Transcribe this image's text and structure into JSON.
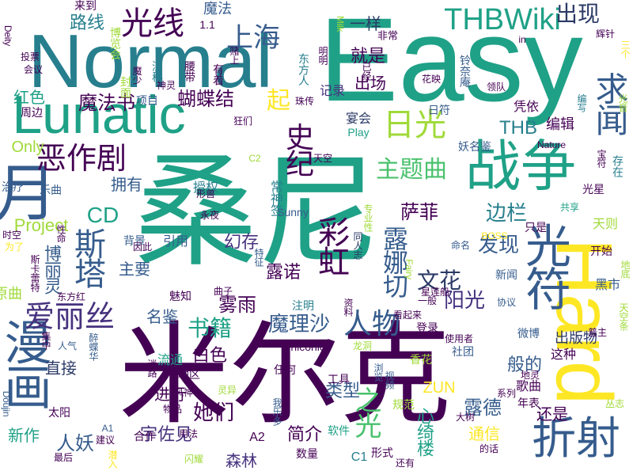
{
  "palette": {
    "d": "#440154",
    "p": "#46327e",
    "b": "#365c8d",
    "t": "#277f8e",
    "g": "#1fa187",
    "l": "#4ac16d",
    "y": "#a0da39",
    "Y": "#fde725",
    "k": "#2b3a66"
  },
  "words": [
    {
      "text": "Normal",
      "color": "t"
    },
    {
      "text": "Easy",
      "color": "g"
    },
    {
      "text": "Hard",
      "color": "Y"
    },
    {
      "text": "桑尼",
      "color": "g"
    },
    {
      "text": "米尔克",
      "color": "d"
    },
    {
      "text": "Lunatic",
      "color": "g"
    },
    {
      "text": "战争",
      "color": "g"
    },
    {
      "text": "月",
      "color": "b"
    },
    {
      "text": "漫画",
      "color": "b"
    },
    {
      "text": "光符",
      "color": "b"
    },
    {
      "text": "光线",
      "color": "d"
    },
    {
      "text": "上海",
      "color": "b"
    },
    {
      "text": "THBWiki",
      "color": "g"
    },
    {
      "text": "出现",
      "color": "k"
    },
    {
      "text": "恶作剧",
      "color": "d"
    },
    {
      "text": "史纪",
      "color": "d"
    },
    {
      "text": "日光",
      "color": "y"
    },
    {
      "text": "求闻",
      "color": "b"
    },
    {
      "text": "斯塔",
      "color": "b"
    },
    {
      "text": "露娜切",
      "color": "b"
    },
    {
      "text": "爱丽丝",
      "color": "p"
    },
    {
      "text": "人物",
      "color": "b"
    },
    {
      "text": "折射",
      "color": "b"
    },
    {
      "text": "主题曲",
      "color": "l"
    },
    {
      "text": "彩虹",
      "color": "d"
    },
    {
      "text": "魔法书",
      "color": "d"
    },
    {
      "text": "蝴蝶结",
      "color": "d"
    },
    {
      "text": "路线",
      "color": "t"
    },
    {
      "text": "Only",
      "color": "y"
    },
    {
      "text": "CD",
      "color": "g"
    },
    {
      "text": "Project",
      "color": "y"
    },
    {
      "text": "博丽灵",
      "color": "b"
    },
    {
      "text": "书籍",
      "color": "g"
    },
    {
      "text": "魔理沙",
      "color": "b"
    },
    {
      "text": "之光",
      "color": "l"
    },
    {
      "text": "阳光",
      "color": "p"
    },
    {
      "text": "文花",
      "color": "k"
    },
    {
      "text": "萨菲",
      "color": "d"
    },
    {
      "text": "边栏",
      "color": "t"
    },
    {
      "text": "发现",
      "color": "b"
    },
    {
      "text": "露德",
      "color": "b"
    },
    {
      "text": "类型",
      "color": "b"
    },
    {
      "text": "她们",
      "color": "d"
    },
    {
      "text": "白色",
      "color": "d"
    },
    {
      "text": "宇佐见",
      "color": "p"
    },
    {
      "text": "人妖",
      "color": "b"
    },
    {
      "text": "新作",
      "color": "g"
    },
    {
      "text": "起",
      "color": "Y"
    },
    {
      "text": "红色",
      "color": "g"
    },
    {
      "text": "就是",
      "color": "d"
    },
    {
      "text": "出场",
      "color": "d"
    },
    {
      "text": "THB",
      "color": "t"
    },
    {
      "text": "雾雨",
      "color": "d"
    },
    {
      "text": "幻存",
      "color": "p"
    },
    {
      "text": "露诺",
      "color": "d"
    },
    {
      "text": "名鉴",
      "color": "b"
    },
    {
      "text": "直接",
      "color": "k"
    },
    {
      "text": "进行",
      "color": "d"
    },
    {
      "text": "通信",
      "color": "Y"
    },
    {
      "text": "般的",
      "color": "b"
    },
    {
      "text": "还是",
      "color": "d"
    },
    {
      "text": "ZUN",
      "color": "Y"
    },
    {
      "text": "心绮楼",
      "color": "g"
    },
    {
      "text": "简介",
      "color": "d"
    },
    {
      "text": "森林",
      "color": "p"
    },
    {
      "text": "主要",
      "color": "b"
    },
    {
      "text": "一样",
      "color": "k"
    },
    {
      "text": "魔法",
      "color": "b"
    },
    {
      "text": "原曲",
      "color": "y"
    },
    {
      "text": "拥有",
      "color": "b"
    },
    {
      "text": "宴会",
      "color": "k"
    },
    {
      "text": "凭依",
      "color": "d"
    },
    {
      "text": "编辑",
      "color": "d"
    },
    {
      "text": "记录",
      "color": "p"
    },
    {
      "text": "日符",
      "color": "b"
    },
    {
      "text": "出版物",
      "color": "k"
    },
    {
      "text": "这种",
      "color": "d"
    },
    {
      "text": "歌曲",
      "color": "d"
    },
    {
      "text": "年表",
      "color": "d"
    },
    {
      "text": "常神签",
      "color": "t"
    },
    {
      "text": "形式",
      "color": "d"
    },
    {
      "text": "C1",
      "color": "t"
    },
    {
      "text": "A2",
      "color": "d"
    },
    {
      "text": "合作",
      "color": "d"
    },
    {
      "text": "数量",
      "color": "d"
    },
    {
      "text": "niconico",
      "color": "d"
    },
    {
      "text": "Sunny",
      "color": "b"
    },
    {
      "text": "任何",
      "color": "d"
    },
    {
      "text": "地区",
      "color": "d"
    },
    {
      "text": "妖名鉴",
      "color": "b"
    },
    {
      "text": "引用",
      "color": "b"
    },
    {
      "text": "背景",
      "color": "b"
    },
    {
      "text": "授权",
      "color": "t"
    },
    {
      "text": "乐曲",
      "color": "b"
    },
    {
      "text": "治疗",
      "color": "b"
    },
    {
      "text": "周边",
      "color": "d"
    },
    {
      "text": "狂们",
      "color": "d"
    },
    {
      "text": "项目",
      "color": "b"
    },
    {
      "text": "深秘",
      "color": "t"
    },
    {
      "text": "腰带",
      "color": "d"
    },
    {
      "text": "有着",
      "color": "d"
    },
    {
      "text": "来到",
      "color": "d"
    },
    {
      "text": "1.1",
      "color": "d"
    },
    {
      "text": "非常",
      "color": "d"
    },
    {
      "text": "in",
      "color": "d"
    },
    {
      "text": "会议",
      "color": "d"
    },
    {
      "text": "Deity",
      "color": "d"
    },
    {
      "text": "Doujin",
      "color": "b"
    },
    {
      "text": "流通",
      "color": "g"
    },
    {
      "text": "物品",
      "color": "d"
    },
    {
      "text": "建议",
      "color": "d"
    },
    {
      "text": "A1",
      "color": "b"
    },
    {
      "text": "太阳",
      "color": "d"
    },
    {
      "text": "集中",
      "color": "d"
    },
    {
      "text": "软件",
      "color": "g"
    },
    {
      "text": "工具",
      "color": "d"
    },
    {
      "text": "社团",
      "color": "b"
    },
    {
      "text": "香花",
      "color": "y"
    },
    {
      "text": "浏览",
      "color": "b"
    },
    {
      "text": "视频",
      "color": "b"
    },
    {
      "text": "规范",
      "color": "y"
    },
    {
      "text": "系列",
      "color": "d"
    },
    {
      "text": "天则",
      "color": "y"
    },
    {
      "text": "共享",
      "color": "g"
    },
    {
      "text": "只是",
      "color": "d"
    },
    {
      "text": "光星",
      "color": "d"
    },
    {
      "text": "开始",
      "color": "d"
    },
    {
      "text": "黑市",
      "color": "b"
    },
    {
      "text": "新闻",
      "color": "b"
    },
    {
      "text": "协议",
      "color": "b"
    },
    {
      "text": "微博",
      "color": "b"
    },
    {
      "text": "使用者",
      "color": "d"
    },
    {
      "text": "登录",
      "color": "d"
    },
    {
      "text": "注明",
      "color": "t"
    },
    {
      "text": "魅知",
      "color": "d"
    },
    {
      "text": "曲子",
      "color": "d"
    },
    {
      "text": "因此",
      "color": "d"
    },
    {
      "text": "永夜",
      "color": "d"
    },
    {
      "text": "形兽",
      "color": "d"
    },
    {
      "text": "同人志",
      "color": "k"
    },
    {
      "text": "命名",
      "color": "b"
    },
    {
      "text": "BOSS",
      "color": "Y"
    },
    {
      "text": "Fairy",
      "color": "y"
    },
    {
      "text": "星莲船",
      "color": "d"
    },
    {
      "text": "Nature",
      "color": "d"
    },
    {
      "text": "Play",
      "color": "g"
    },
    {
      "text": "领队",
      "color": "d"
    },
    {
      "text": "花映",
      "color": "d"
    },
    {
      "text": "编写",
      "color": "t"
    },
    {
      "text": "三个",
      "color": "Y"
    },
    {
      "text": "辉针",
      "color": "d"
    },
    {
      "text": "东方人",
      "color": "t"
    },
    {
      "text": "铃奈庵",
      "color": "b"
    },
    {
      "text": "明明",
      "color": "d"
    },
    {
      "text": "神灵",
      "color": "d"
    },
    {
      "text": "珠传",
      "color": "d"
    },
    {
      "text": "封面",
      "color": "y"
    },
    {
      "text": "博览会",
      "color": "y"
    },
    {
      "text": "投票",
      "color": "d"
    },
    {
      "text": "天空",
      "color": "d"
    },
    {
      "text": "C2",
      "color": "y"
    },
    {
      "text": "看起来",
      "color": "d"
    },
    {
      "text": "资料",
      "color": "d"
    },
    {
      "text": "迷路",
      "color": "d"
    },
    {
      "text": "人气",
      "color": "b"
    },
    {
      "text": "醉蝶华",
      "color": "b"
    },
    {
      "text": "我乐多",
      "color": "b"
    },
    {
      "text": "风神",
      "color": "d"
    },
    {
      "text": "灵异",
      "color": "y"
    },
    {
      "text": "闪耀",
      "color": "y"
    },
    {
      "text": "用法",
      "color": "d"
    },
    {
      "text": "还有",
      "color": "d"
    },
    {
      "text": "的话",
      "color": "d"
    },
    {
      "text": "大树",
      "color": "d"
    },
    {
      "text": "地灵",
      "color": "d"
    },
    {
      "text": "丛志",
      "color": "y"
    },
    {
      "text": "最后",
      "color": "d"
    },
    {
      "text": "潜入",
      "color": "Y"
    },
    {
      "text": "东方红",
      "color": "d"
    },
    {
      "text": "时空",
      "color": "d"
    },
    {
      "text": "为了",
      "color": "Y"
    },
    {
      "text": "性命",
      "color": "d"
    },
    {
      "text": "斯卡蕾特",
      "color": "d"
    },
    {
      "text": "专业性",
      "color": "y"
    },
    {
      "text": "特征",
      "color": "b"
    },
    {
      "text": "龙洞",
      "color": "y"
    },
    {
      "text": "一般",
      "color": "d"
    },
    {
      "text": "普主",
      "color": "d"
    },
    {
      "text": "天空条",
      "color": "y"
    },
    {
      "text": "地底",
      "color": "y"
    },
    {
      "text": "Milk",
      "color": "y"
    },
    {
      "text": "已经",
      "color": "d"
    },
    {
      "text": "赌上",
      "color": "d"
    },
    {
      "text": "魔少",
      "color": "d"
    },
    {
      "text": "存在",
      "color": "t"
    },
    {
      "text": "宝符",
      "color": "d"
    },
    {
      "text": "光音",
      "color": "y"
    }
  ]
}
